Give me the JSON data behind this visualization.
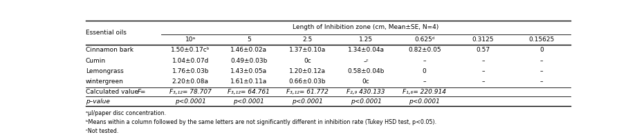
{
  "title": "Length of Inhibition zone (cm, Mean±SE, N=4)",
  "col_headers": [
    "10ᵃ",
    "5",
    "2.5",
    "1.25",
    "0.625ᵈ",
    "0.3125",
    "0.15625"
  ],
  "rows": [
    [
      "Cinnamon bark",
      "1.50±0.17cᵇ",
      "1.46±0.02a",
      "1.37±0.10a",
      "1.34±0.04a",
      "0.82±0.05",
      "0.57",
      "0"
    ],
    [
      "Cumin",
      "1.04±0.07d",
      "0.49±0.03b",
      "0c",
      "–ᶜ",
      "–",
      "–",
      "–"
    ],
    [
      "Lemongrass",
      "1.76±0.03b",
      "1.43±0.05a",
      "1.20±0.12a",
      "0.58±0.04b",
      "0",
      "–",
      "–"
    ],
    [
      "wintergreen",
      "2.20±0.08a",
      "1.61±0.11a",
      "0.66±0.03b",
      "0c",
      "–",
      "–",
      "–"
    ]
  ],
  "calc_row_label": "Calculated value = F",
  "calc_row_italic": "F",
  "calc_vals": [
    "F₃,₁₂= 78.707",
    "F₃,₁₂= 64.761",
    "F₃,₁₂= 61.772",
    "F₂,₉ 430.133",
    "F₁,₆= 220.914",
    "",
    ""
  ],
  "pval_label": "p–value",
  "pval_vals": [
    "p<0.0001",
    "p<0.0001",
    "p<0.0001",
    "p<0.0001",
    "p<0.0001",
    "",
    ""
  ],
  "footnotes": [
    "ᵃμl/paper disc concentration.",
    "ᵇMeans within a column followed by the same letters are not significantly different in inhibition rate (Tukey HSD test, p<0.05).",
    "ᶜNot tested."
  ],
  "font_size": 6.5,
  "fn_font_size": 5.8
}
